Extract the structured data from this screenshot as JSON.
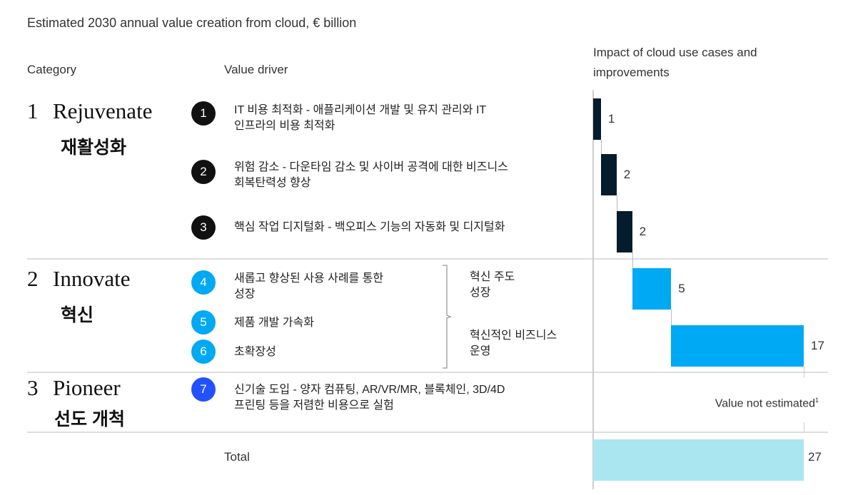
{
  "chart_data": {
    "type": "bar",
    "subtype": "waterfall",
    "title": "Estimated 2030 annual value creation from cloud, € billion",
    "headers": {
      "category": "Category",
      "driver": "Value driver",
      "impact": [
        "Impact of cloud use cases and",
        "improvements"
      ]
    },
    "categories": [
      {
        "num": "1",
        "name": "Rejuvenate",
        "ko": "재활성화"
      },
      {
        "num": "2",
        "name": "Innovate",
        "ko": "혁신"
      },
      {
        "num": "3",
        "name": "Pioneer",
        "ko": "선도 개척"
      }
    ],
    "drivers": [
      {
        "num": "1",
        "lines": [
          "IT 비용 최적화 - 애플리케이션 개발 및 유지 관리와 IT",
          "인프라의 비용 최적화"
        ],
        "value": 1,
        "label": "1"
      },
      {
        "num": "2",
        "lines": [
          "위험 감소 - 다운타임 감소 및 사이버 공격에 대한 비즈니스",
          "회복탄력성 향상"
        ],
        "value": 2,
        "label": "2"
      },
      {
        "num": "3",
        "lines": [
          "핵심 작업 디지털화 - 백오피스 기능의 자동화 및 디지털화"
        ],
        "value": 2,
        "label": "2"
      },
      {
        "num": "4",
        "lines": [
          "새롭고 향상된 사용 사례를 통한",
          "성장"
        ]
      },
      {
        "num": "5",
        "lines": [
          "제품 개발 가속화"
        ]
      },
      {
        "num": "6",
        "lines": [
          "초확장성"
        ]
      },
      {
        "num": "7",
        "lines": [
          "신기술 도입 - 양자 컴퓨팅, AR/VR/MR, 블록체인, 3D/4D",
          "프린팅 등을 저렴한 비용으로 실험"
        ]
      }
    ],
    "groups": [
      {
        "lines": [
          "혁신 주도",
          "성장"
        ],
        "value": 5,
        "label": "5"
      },
      {
        "lines": [
          "혁신적인 비즈니스",
          "운영"
        ],
        "value": 17,
        "label": "17"
      }
    ],
    "not_estimated": "Value not estimated",
    "not_estimated_footnote": "1",
    "total": {
      "label": "Total",
      "value": 27,
      "value_label": "27"
    },
    "xlim": [
      0,
      27
    ],
    "colors": {
      "rejuvenate": "#051c2c",
      "innovate": "#00a9f4",
      "pioneer": "#2251ff",
      "total": "#aae6f0"
    }
  }
}
